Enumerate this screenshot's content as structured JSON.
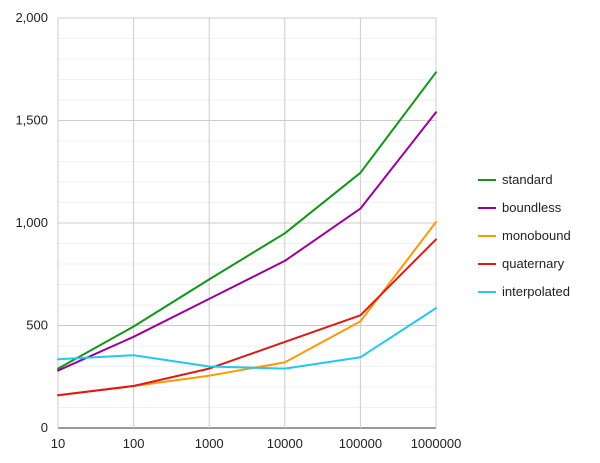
{
  "chart_data": {
    "type": "line",
    "title": "",
    "xlabel": "",
    "ylabel": "",
    "categories": [
      "10",
      "100",
      "1000",
      "10000",
      "100000",
      "1000000"
    ],
    "y_ticks": [
      "0",
      "500",
      "1,000",
      "1,500",
      "2,000"
    ],
    "ylim": [
      0,
      2000
    ],
    "grid": true,
    "legend_position": "right",
    "series": [
      {
        "name": "standard",
        "color": "#109618",
        "values": [
          290,
          495,
          725,
          950,
          1245,
          1735
        ]
      },
      {
        "name": "boundless",
        "color": "#990099",
        "values": [
          280,
          445,
          630,
          815,
          1070,
          1540
        ]
      },
      {
        "name": "monobound",
        "color": "#ff9900",
        "values": [
          160,
          205,
          255,
          320,
          520,
          1005
        ]
      },
      {
        "name": "quaternary",
        "color": "#dc1a1a",
        "values": [
          160,
          205,
          290,
          420,
          550,
          920
        ]
      },
      {
        "name": "interpolated",
        "color": "#22c8f0",
        "values": [
          335,
          355,
          300,
          290,
          345,
          585
        ]
      }
    ]
  }
}
